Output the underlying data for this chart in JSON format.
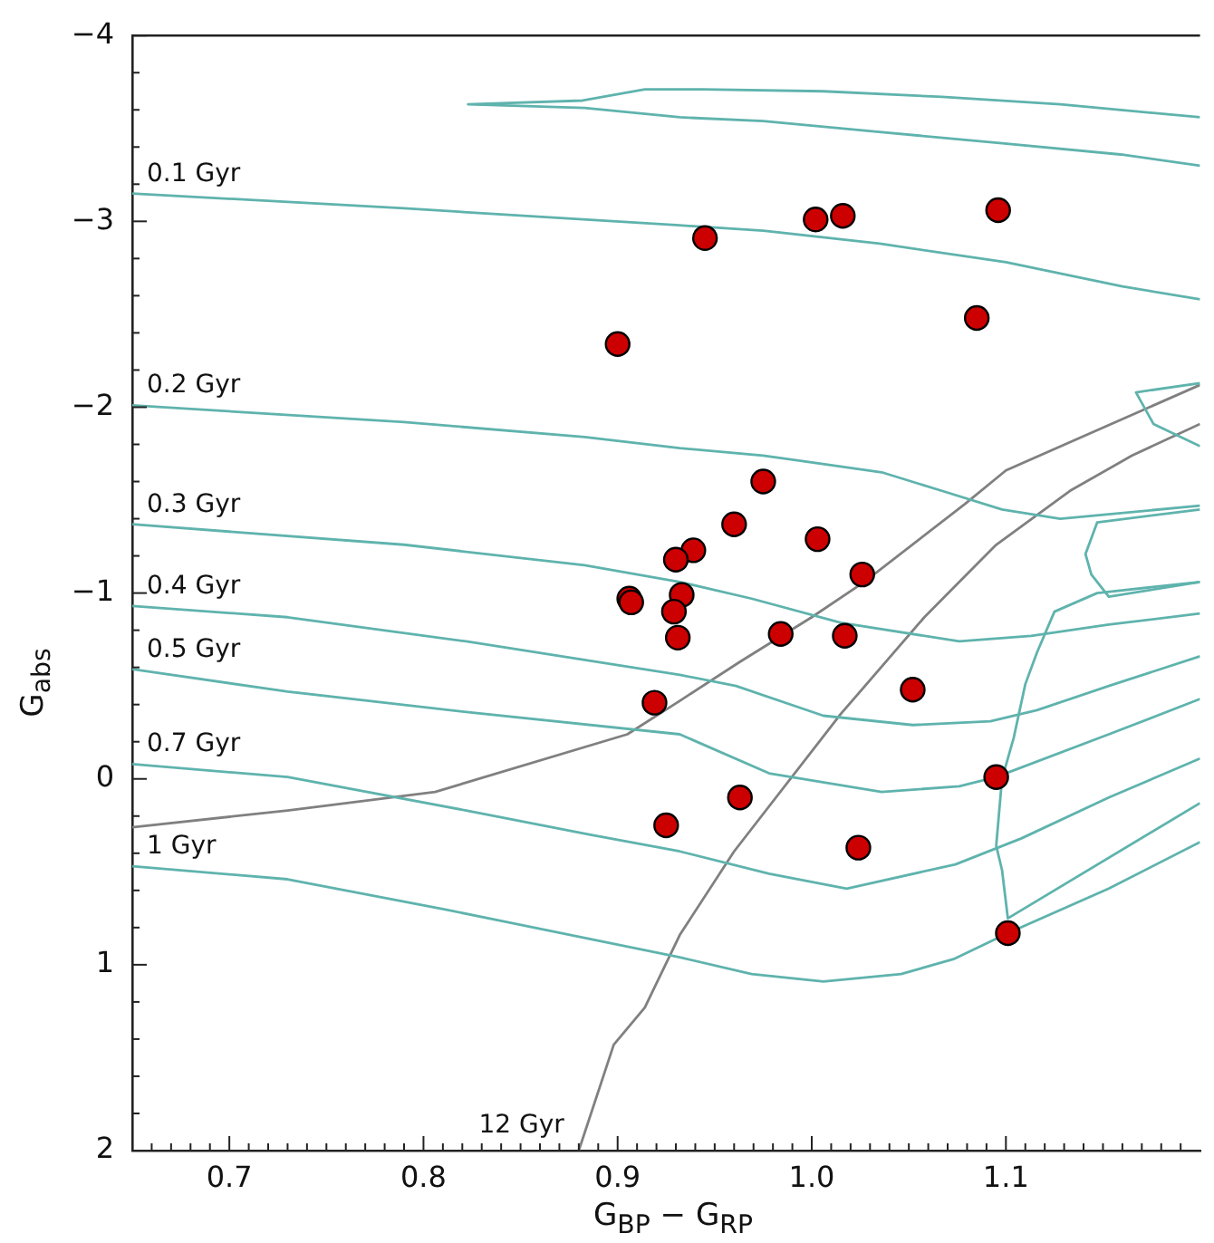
{
  "chart_data": {
    "type": "scatter",
    "xlabel": "G$_{BP}$ − G$_{RP}$",
    "ylabel": "G$_{abs}$",
    "xlim": [
      0.65,
      1.2
    ],
    "ylim": [
      2,
      -4
    ],
    "xticks": [
      {
        "value": 0.65,
        "label": null
      },
      {
        "value": 0.66,
        "label": null
      },
      {
        "value": 0.67,
        "label": null
      },
      {
        "value": 0.68,
        "label": null
      },
      {
        "value": 0.69,
        "label": null
      },
      {
        "value": 0.7,
        "label": "0.7"
      },
      {
        "value": 0.71,
        "label": null
      },
      {
        "value": 0.72,
        "label": null
      },
      {
        "value": 0.73,
        "label": null
      },
      {
        "value": 0.74,
        "label": null
      },
      {
        "value": 0.75,
        "label": null
      },
      {
        "value": 0.76,
        "label": null
      },
      {
        "value": 0.77,
        "label": null
      },
      {
        "value": 0.78,
        "label": null
      },
      {
        "value": 0.79,
        "label": null
      },
      {
        "value": 0.8,
        "label": "0.8"
      },
      {
        "value": 0.81,
        "label": null
      },
      {
        "value": 0.82,
        "label": null
      },
      {
        "value": 0.83,
        "label": null
      },
      {
        "value": 0.84,
        "label": null
      },
      {
        "value": 0.85,
        "label": null
      },
      {
        "value": 0.86,
        "label": null
      },
      {
        "value": 0.87,
        "label": null
      },
      {
        "value": 0.88,
        "label": null
      },
      {
        "value": 0.89,
        "label": null
      },
      {
        "value": 0.9,
        "label": "0.9"
      },
      {
        "value": 0.91,
        "label": null
      },
      {
        "value": 0.92,
        "label": null
      },
      {
        "value": 0.93,
        "label": null
      },
      {
        "value": 0.94,
        "label": null
      },
      {
        "value": 0.95,
        "label": null
      },
      {
        "value": 0.96,
        "label": null
      },
      {
        "value": 0.97,
        "label": null
      },
      {
        "value": 0.98,
        "label": null
      },
      {
        "value": 0.99,
        "label": null
      },
      {
        "value": 1.0,
        "label": "1.0"
      },
      {
        "value": 1.01,
        "label": null
      },
      {
        "value": 1.02,
        "label": null
      },
      {
        "value": 1.03,
        "label": null
      },
      {
        "value": 1.04,
        "label": null
      },
      {
        "value": 1.05,
        "label": null
      },
      {
        "value": 1.06,
        "label": null
      },
      {
        "value": 1.07,
        "label": null
      },
      {
        "value": 1.08,
        "label": null
      },
      {
        "value": 1.09,
        "label": null
      },
      {
        "value": 1.1,
        "label": "1.1"
      },
      {
        "value": 1.11,
        "label": null
      },
      {
        "value": 1.12,
        "label": null
      },
      {
        "value": 1.13,
        "label": null
      },
      {
        "value": 1.14,
        "label": null
      },
      {
        "value": 1.15,
        "label": null
      },
      {
        "value": 1.16,
        "label": null
      },
      {
        "value": 1.17,
        "label": null
      },
      {
        "value": 1.18,
        "label": null
      },
      {
        "value": 1.19,
        "label": null
      }
    ],
    "yticks": [
      {
        "value": -4,
        "label": "−4"
      },
      {
        "value": -3.8,
        "label": null
      },
      {
        "value": -3.6,
        "label": null
      },
      {
        "value": -3.4,
        "label": null
      },
      {
        "value": -3.2,
        "label": null
      },
      {
        "value": -3,
        "label": "−3"
      },
      {
        "value": -2.8,
        "label": null
      },
      {
        "value": -2.6,
        "label": null
      },
      {
        "value": -2.4,
        "label": null
      },
      {
        "value": -2.2,
        "label": null
      },
      {
        "value": -2,
        "label": "−2"
      },
      {
        "value": -1.8,
        "label": null
      },
      {
        "value": -1.6,
        "label": null
      },
      {
        "value": -1.4,
        "label": null
      },
      {
        "value": -1.2,
        "label": null
      },
      {
        "value": -1,
        "label": "−1"
      },
      {
        "value": -0.8,
        "label": null
      },
      {
        "value": -0.6,
        "label": null
      },
      {
        "value": -0.4,
        "label": null
      },
      {
        "value": -0.2,
        "label": null
      },
      {
        "value": 0,
        "label": "0"
      },
      {
        "value": 0.2,
        "label": null
      },
      {
        "value": 0.4,
        "label": null
      },
      {
        "value": 0.6,
        "label": null
      },
      {
        "value": 0.8,
        "label": null
      },
      {
        "value": 1,
        "label": "1"
      },
      {
        "value": 1.2,
        "label": null
      },
      {
        "value": 1.4,
        "label": null
      },
      {
        "value": 1.6,
        "label": null
      },
      {
        "value": 1.8,
        "label": null
      },
      {
        "value": 2,
        "label": "2"
      }
    ],
    "series": [
      {
        "type": "line",
        "color": "#5fb3ad",
        "x": [
          1.2,
          1.128,
          1.067,
          1.006,
          0.944,
          0.914,
          0.882,
          0.823,
          0.883,
          0.932,
          0.975,
          1.036,
          1.098,
          1.159,
          1.2
        ],
        "values": [
          -3.56,
          -3.63,
          -3.67,
          -3.7,
          -3.71,
          -3.71,
          -3.65,
          -3.63,
          -3.61,
          -3.56,
          -3.54,
          -3.48,
          -3.42,
          -3.36,
          -3.3
        ]
      },
      {
        "type": "line",
        "name": "0.1 Gyr",
        "color": "#5fb3ad",
        "x": [
          0.65,
          0.79,
          0.93,
          0.975,
          1.035,
          1.1,
          1.16,
          1.2
        ],
        "values": [
          -3.15,
          -3.07,
          -2.98,
          -2.95,
          -2.88,
          -2.78,
          -2.65,
          -2.58
        ]
      },
      {
        "type": "line",
        "color": "#5fb3ad",
        "x": [
          1.2,
          1.167,
          1.176,
          1.2
        ],
        "values": [
          -2.13,
          -2.08,
          -1.91,
          -1.79
        ]
      },
      {
        "type": "line",
        "name": "0.2 Gyr",
        "color": "#5fb3ad",
        "x": [
          0.65,
          0.79,
          0.883,
          0.932,
          0.975,
          1.036,
          1.067,
          1.098,
          1.128,
          1.2
        ],
        "values": [
          -2.01,
          -1.92,
          -1.84,
          -1.78,
          -1.74,
          -1.65,
          -1.55,
          -1.45,
          -1.4,
          -1.47
        ]
      },
      {
        "type": "line",
        "color": "#5fb3ad",
        "x": [
          1.2,
          1.147,
          1.141,
          1.144,
          1.153,
          1.2
        ],
        "values": [
          -1.45,
          -1.38,
          -1.21,
          -1.1,
          -0.98,
          -1.06
        ]
      },
      {
        "type": "line",
        "name": "0.3 Gyr",
        "color": "#5fb3ad",
        "x": [
          0.65,
          0.79,
          0.883,
          0.932,
          0.969,
          1.015,
          1.076,
          1.113,
          1.153,
          1.2
        ],
        "values": [
          -1.37,
          -1.26,
          -1.15,
          -1.06,
          -0.97,
          -0.84,
          -0.74,
          -0.77,
          -0.83,
          -0.89
        ]
      },
      {
        "type": "line",
        "name": "0.4 Gyr",
        "color": "#5fb3ad",
        "x": [
          0.65,
          0.73,
          0.822,
          0.932,
          0.961,
          1.006,
          1.052,
          1.092,
          1.116,
          1.153,
          1.2
        ],
        "values": [
          -0.93,
          -0.87,
          -0.74,
          -0.56,
          -0.5,
          -0.34,
          -0.29,
          -0.31,
          -0.37,
          -0.5,
          -0.66
        ]
      },
      {
        "type": "line",
        "name": "0.5 Gyr",
        "color": "#5fb3ad",
        "x": [
          0.65,
          0.73,
          0.822,
          0.932,
          0.978,
          1.036,
          1.076,
          1.095,
          1.153,
          1.2
        ],
        "values": [
          -0.59,
          -0.47,
          -0.36,
          -0.24,
          -0.03,
          0.07,
          0.04,
          -0.01,
          -0.24,
          -0.43
        ]
      },
      {
        "type": "line",
        "name": "0.7 Gyr",
        "color": "#5fb3ad",
        "x": [
          0.65,
          0.73,
          0.822,
          0.886,
          0.932,
          0.978,
          1.018,
          1.074,
          1.108,
          1.153,
          1.2
        ],
        "values": [
          -0.08,
          -0.01,
          0.17,
          0.3,
          0.39,
          0.51,
          0.59,
          0.46,
          0.32,
          0.1,
          -0.11
        ]
      },
      {
        "type": "line",
        "name": "1 Gyr",
        "color": "#5fb3ad",
        "x": [
          0.65,
          0.73,
          0.81,
          0.932,
          0.969,
          1.006,
          1.046,
          1.073,
          1.101,
          1.153,
          1.2
        ],
        "values": [
          0.47,
          0.54,
          0.7,
          0.96,
          1.05,
          1.09,
          1.05,
          0.97,
          0.83,
          0.59,
          0.34
        ]
      },
      {
        "type": "line",
        "color": "#5fb3ad",
        "x": [
          1.2,
          1.147,
          1.125,
          1.116,
          1.11,
          1.104,
          1.098,
          1.095,
          1.098,
          1.101,
          1.2
        ],
        "values": [
          -1.06,
          -1.0,
          -0.9,
          -0.68,
          -0.51,
          -0.22,
          0.0,
          0.36,
          0.49,
          0.75,
          0.13
        ]
      },
      {
        "type": "line",
        "color": "#808080",
        "x": [
          0.65,
          0.73,
          0.806,
          0.905,
          0.932,
          0.963,
          1.0,
          1.027,
          1.079,
          1.1,
          1.2
        ],
        "values": [
          0.26,
          0.17,
          0.07,
          -0.24,
          -0.42,
          -0.63,
          -0.87,
          -1.06,
          -1.48,
          -1.66,
          -2.12
        ]
      },
      {
        "type": "line",
        "name": "12 Gyr",
        "color": "#808080",
        "x": [
          0.88,
          0.898,
          0.914,
          0.932,
          0.96,
          1.015,
          1.058,
          1.076,
          1.095,
          1.133,
          1.165,
          1.2
        ],
        "values": [
          2.0,
          1.43,
          1.23,
          0.84,
          0.39,
          -0.35,
          -0.87,
          -1.06,
          -1.26,
          -1.55,
          -1.74,
          -1.91
        ]
      },
      {
        "type": "scatter",
        "marker": "circle",
        "color": "#cc0000",
        "x": [
          0.9,
          0.945,
          1.002,
          1.016,
          1.096,
          1.085,
          0.975,
          0.96,
          1.003,
          0.939,
          0.93,
          1.026,
          0.906,
          0.907,
          0.933,
          0.929,
          0.931,
          0.984,
          1.017,
          1.052,
          0.919,
          1.095,
          0.963,
          0.925,
          1.024,
          1.101
        ],
        "values": [
          -2.34,
          -2.91,
          -3.01,
          -3.03,
          -3.06,
          -2.48,
          -1.6,
          -1.37,
          -1.29,
          -1.23,
          -1.18,
          -1.1,
          -0.97,
          -0.95,
          -0.99,
          -0.9,
          -0.76,
          -0.78,
          -0.77,
          -0.48,
          -0.41,
          -0.01,
          0.1,
          0.25,
          0.37,
          0.83
        ]
      }
    ]
  }
}
